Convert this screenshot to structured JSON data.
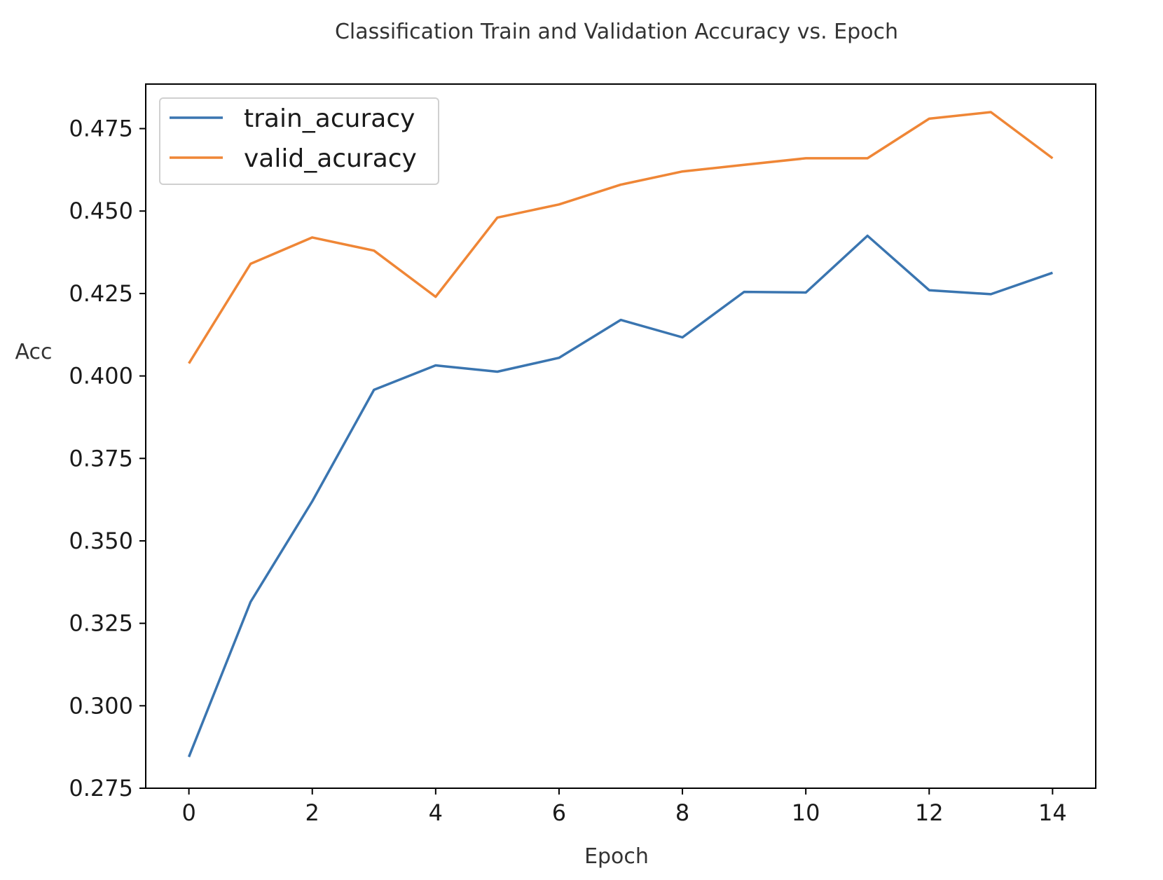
{
  "chart_data": {
    "type": "line",
    "title": "Classification Train and Validation Accuracy vs. Epoch",
    "xlabel": "Epoch",
    "ylabel": "Acc",
    "xlim": [
      -0.7,
      14.7
    ],
    "ylim": [
      0.275,
      0.4885
    ],
    "x": [
      0,
      1,
      2,
      3,
      4,
      5,
      6,
      7,
      8,
      9,
      10,
      11,
      12,
      13,
      14
    ],
    "xticks": [
      0,
      2,
      4,
      6,
      8,
      10,
      12,
      14
    ],
    "yticks": [
      0.275,
      0.3,
      0.325,
      0.35,
      0.375,
      0.4,
      0.425,
      0.45,
      0.475
    ],
    "ytick_labels": [
      "0.275",
      "0.300",
      "0.325",
      "0.350",
      "0.375",
      "0.400",
      "0.425",
      "0.450",
      "0.475"
    ],
    "grid": false,
    "legend_position": "upper-left",
    "series": [
      {
        "name": "train_acuracy",
        "color": "#3a75b0",
        "values": [
          0.2845,
          0.3315,
          0.362,
          0.3958,
          0.4032,
          0.4013,
          0.4055,
          0.417,
          0.4117,
          0.4255,
          0.4253,
          0.4425,
          0.426,
          0.4248,
          0.4313
        ]
      },
      {
        "name": "valid_acuracy",
        "color": "#ef8636",
        "values": [
          0.4038,
          0.434,
          0.442,
          0.438,
          0.424,
          0.448,
          0.452,
          0.458,
          0.462,
          0.464,
          0.466,
          0.466,
          0.478,
          0.48,
          0.466
        ]
      }
    ]
  }
}
